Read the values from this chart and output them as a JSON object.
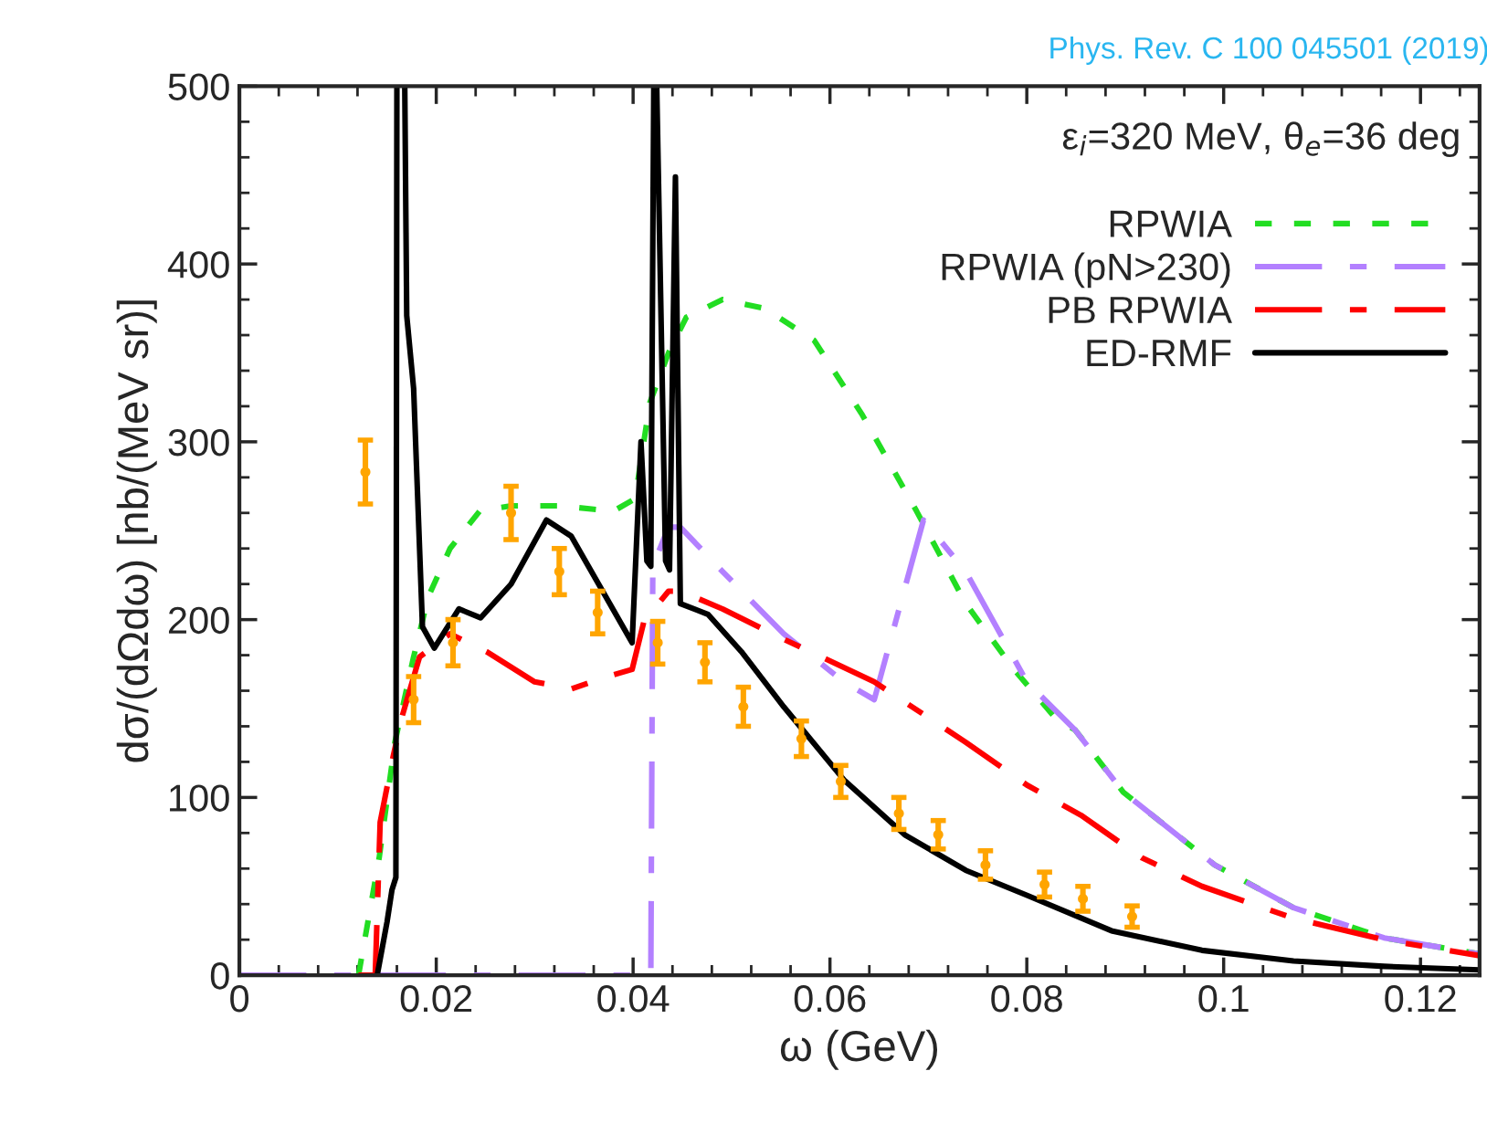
{
  "chart_data": {
    "type": "line",
    "xlabel": "ω (GeV)",
    "ylabel": "dσ/(dΩdω) [nb/(MeV sr)]",
    "annotations": [
      "ε$_{i}$=320 MeV, θ$_{e}$=36 deg",
      "Phys. Rev. C 100 045501 (2019)"
    ],
    "xlim": [
      0,
      0.126
    ],
    "xticks": [
      0,
      0.02,
      0.04,
      0.06,
      0.08,
      0.1,
      0.12
    ],
    "ylim": [
      0,
      500
    ],
    "yticks": [
      0,
      100,
      200,
      300,
      400,
      500
    ],
    "grid": false,
    "legend": "top right",
    "series": [
      {
        "name": "RPWIA",
        "color": "#22dd22",
        "line_style": "dotted",
        "x": [
          0.0121,
          0.0142,
          0.0158,
          0.0177,
          0.0192,
          0.0214,
          0.0244,
          0.0276,
          0.0325,
          0.038,
          0.0402,
          0.0417,
          0.0436,
          0.0454,
          0.0491,
          0.0534,
          0.0584,
          0.0633,
          0.0688,
          0.0738,
          0.0787,
          0.083,
          0.0849,
          0.0898,
          0.0991,
          0.1071,
          0.1163,
          0.126
        ],
        "values": [
          0,
          66,
          131,
          179,
          213,
          240,
          261,
          264,
          264,
          261,
          268,
          322,
          350,
          370,
          380,
          375,
          357,
          315,
          261,
          209,
          172,
          144,
          138,
          103,
          62,
          38,
          21,
          12
        ]
      },
      {
        "name": "RPWIA (pN>230)",
        "color": "#b380ff",
        "line_style": "dashdot",
        "x": [
          0.0,
          0.0416,
          0.0418,
          0.042,
          0.0436,
          0.0448,
          0.0491,
          0.0553,
          0.0614,
          0.0645,
          0.0695,
          0.0738,
          0.08,
          0.0849,
          0.0898,
          0.0991,
          0.1071,
          0.1163,
          0.126
        ],
        "values": [
          0,
          0,
          0,
          230,
          252,
          252,
          227,
          192,
          165,
          155,
          256,
          227,
          165,
          138,
          103,
          62,
          38,
          21,
          12
        ]
      },
      {
        "name": "PB RPWIA",
        "color": "#ff0000",
        "line_style": "dashdot",
        "x": [
          0.0121,
          0.0138,
          0.0143,
          0.0155,
          0.0165,
          0.0183,
          0.0214,
          0.0251,
          0.03,
          0.0337,
          0.0374,
          0.0399,
          0.0411,
          0.0436,
          0.0448,
          0.0491,
          0.0553,
          0.0645,
          0.0738,
          0.08,
          0.0855,
          0.0917,
          0.0978,
          0.1071,
          0.1163,
          0.126
        ],
        "values": [
          0,
          0,
          86,
          120,
          145,
          179,
          192,
          182,
          165,
          161,
          168,
          172,
          199,
          216,
          216,
          206,
          189,
          165,
          131,
          107,
          90,
          66,
          50,
          32,
          20,
          11
        ]
      },
      {
        "name": "ED-RMF",
        "color": "#000000",
        "line_style": "solid",
        "x": [
          0.014,
          0.015,
          0.0155,
          0.0159,
          0.016,
          0.0164,
          0.0168,
          0.017,
          0.0177,
          0.0186,
          0.0198,
          0.0223,
          0.0245,
          0.0276,
          0.0312,
          0.0337,
          0.0399,
          0.0408,
          0.0414,
          0.0418,
          0.0421,
          0.0422,
          0.0424,
          0.0433,
          0.0437,
          0.0443,
          0.0448,
          0.0476,
          0.051,
          0.0553,
          0.0614,
          0.0676,
          0.0738,
          0.08,
          0.0886,
          0.0978,
          0.1071,
          0.1163,
          0.126
        ],
        "values": [
          0,
          30,
          48,
          55,
          500,
          null,
          500,
          371,
          330,
          196,
          184,
          206,
          201,
          220,
          256,
          247,
          187,
          300,
          233,
          230,
          500,
          null,
          500,
          233,
          228,
          449,
          209,
          203,
          182,
          151,
          110,
          79,
          59,
          45,
          25,
          14,
          8,
          5,
          3
        ]
      },
      {
        "type": "scatter",
        "color": "#ffa500",
        "marker": "circle",
        "x": [
          0.0128,
          0.0177,
          0.0217,
          0.0276,
          0.0325,
          0.0364,
          0.0425,
          0.0473,
          0.0512,
          0.0571,
          0.0611,
          0.067,
          0.071,
          0.0758,
          0.0818,
          0.0857,
          0.0907
        ],
        "values": [
          283,
          155,
          187,
          260,
          227,
          204,
          187,
          176,
          151,
          133,
          109,
          91,
          79,
          62,
          51,
          43,
          33
        ],
        "errors": [
          18,
          13,
          13,
          15,
          13,
          12,
          12,
          11,
          11,
          10,
          9,
          9,
          8,
          8,
          7,
          7,
          6
        ]
      }
    ]
  }
}
